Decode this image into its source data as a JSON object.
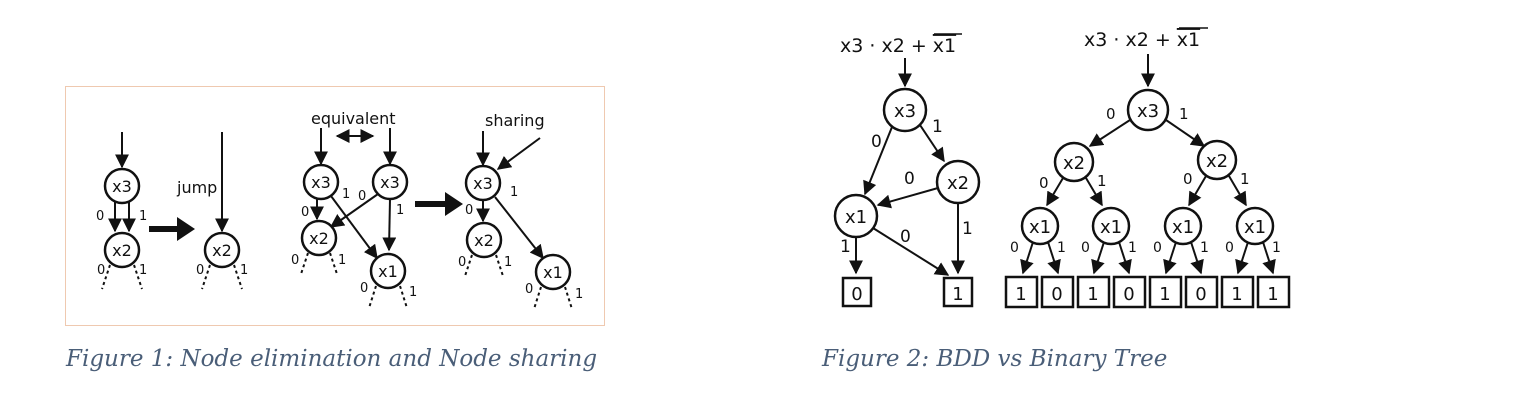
{
  "figure1": {
    "caption": "Figure 1: Node elimination and Node sharing",
    "labels": {
      "jump": "jump",
      "equivalent": "equivalent",
      "sharing": "sharing"
    },
    "nodes": {
      "x1": "x1",
      "x2": "x2",
      "x3": "x3"
    },
    "edges": {
      "zero": "0",
      "one": "1"
    }
  },
  "figure2": {
    "caption": "Figure 2: BDD vs Binary Tree",
    "bdd": {
      "formula_main": "x3 · x2 + ",
      "formula_bar": "x1",
      "nodes": {
        "x1": "x1",
        "x2": "x2",
        "x3": "x3"
      },
      "terminals": [
        "0",
        "1"
      ],
      "edges": {
        "zero": "0",
        "one": "1"
      }
    },
    "tree": {
      "formula_main": "x3 · x2 + ",
      "formula_bar": "x1",
      "nodes": {
        "x1": "x1",
        "x2": "x2",
        "x3": "x3"
      },
      "leaves": [
        "1",
        "0",
        "1",
        "0",
        "1",
        "0",
        "1",
        "1"
      ],
      "edges": {
        "zero": "0",
        "one": "1"
      }
    }
  }
}
